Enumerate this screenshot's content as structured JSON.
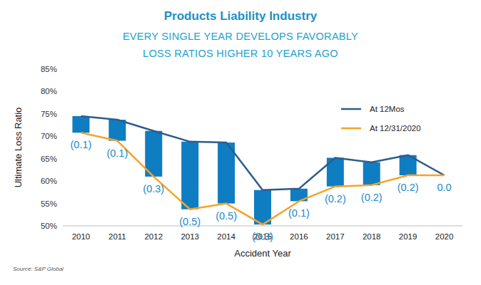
{
  "chart_data": {
    "type": "line",
    "title": "Products Liability Industry",
    "subtitle": [
      "EVERY SINGLE YEAR DEVELOPS FAVORABLY",
      "LOSS RATIOS HIGHER 10 YEARS AGO"
    ],
    "x_label": "Accident Year",
    "y_label": "Ultimate Loss Ratio",
    "source": "Source: S&P Global",
    "categories": [
      "2010",
      "2011",
      "2012",
      "2013",
      "2014",
      "2015",
      "2016",
      "2017",
      "2018",
      "2019",
      "2020"
    ],
    "series": [
      {
        "name": "At 12Mos",
        "color": "#2c5d8c",
        "values": [
          74.5,
          73.7,
          71.2,
          68.8,
          68.6,
          58.0,
          58.3,
          65.2,
          64.2,
          65.8,
          61.3
        ]
      },
      {
        "name": "At 12/31/2020",
        "color": "#f5a32a",
        "values": [
          70.8,
          69.0,
          61.0,
          53.7,
          55.0,
          50.3,
          55.5,
          58.8,
          59.1,
          61.3,
          61.3
        ]
      }
    ],
    "annotations": [
      "(0.1)",
      "(0.1)",
      "(0.3)",
      "(0.5)",
      "(0.5)",
      "(0.3)",
      "(0.1)",
      "(0.2)",
      "(0.2)",
      "(0.2)",
      "0.0"
    ],
    "ylim": [
      50,
      85
    ],
    "yticks": [
      {
        "value": 50,
        "label": "50%"
      },
      {
        "value": 55,
        "label": "55%"
      },
      {
        "value": 60,
        "label": "60%"
      },
      {
        "value": 65,
        "label": "65%"
      },
      {
        "value": 70,
        "label": "70%"
      },
      {
        "value": 75,
        "label": "75%"
      },
      {
        "value": 80,
        "label": "80%"
      },
      {
        "value": 85,
        "label": "85%"
      }
    ],
    "grid": false,
    "legend": "top-right"
  }
}
